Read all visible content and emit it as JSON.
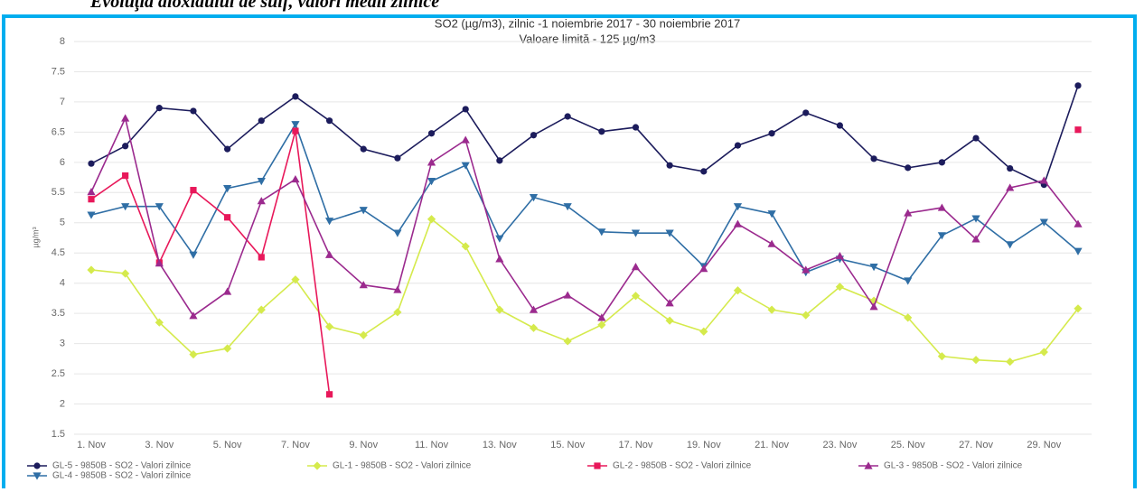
{
  "header": "Evoluţia dioxidului de sulf, valori medii zilnice",
  "chart_data": {
    "type": "line",
    "title": "SO2 (µg/m3), zilnic -1 noiembrie 2017 - 30 noiembrie 2017",
    "subtitle": "Valoare limită - 125 µg/m3",
    "y_label": "µg/m³",
    "categories": [
      "1. Nov",
      null,
      "3. Nov",
      null,
      "5. Nov",
      null,
      "7. Nov",
      null,
      "9. Nov",
      null,
      "11. Nov",
      null,
      "13. Nov",
      null,
      "15. Nov",
      null,
      "17. Nov",
      null,
      "19. Nov",
      null,
      "21. Nov",
      null,
      "23. Nov",
      null,
      "25. Nov",
      null,
      "27. Nov",
      null,
      "29. Nov",
      null
    ],
    "ylim": [
      1.5,
      8
    ],
    "yticks": [
      1.5,
      2,
      2.5,
      3,
      3.5,
      4,
      4.5,
      5,
      5.5,
      6,
      6.5,
      7,
      7.5,
      8
    ],
    "grid": true,
    "legend": "bottom",
    "series": [
      {
        "name": "GL-5 - 9850B - SO2 - Valori zilnice",
        "color": "#1c1c5c",
        "marker": "circle",
        "values": [
          5.98,
          6.27,
          6.9,
          6.85,
          6.22,
          6.69,
          7.09,
          6.69,
          6.22,
          6.07,
          6.48,
          6.88,
          6.03,
          6.45,
          6.76,
          6.51,
          6.58,
          5.95,
          5.85,
          6.28,
          6.48,
          6.82,
          6.61,
          6.06,
          5.91,
          6.0,
          6.4,
          5.9,
          5.63,
          7.27
        ]
      },
      {
        "name": "GL-4 - 9850B - SO2 - Valori zilnice",
        "color": "#2f6ea5",
        "marker": "triangle-down",
        "values": [
          5.13,
          5.27,
          5.27,
          4.47,
          5.57,
          5.69,
          6.63,
          5.03,
          5.21,
          4.83,
          5.69,
          5.95,
          4.74,
          5.42,
          5.27,
          4.85,
          4.83,
          4.83,
          4.28,
          5.27,
          5.15,
          4.18,
          4.4,
          4.27,
          4.04,
          4.79,
          5.07,
          4.64,
          5.01,
          4.53
        ]
      },
      {
        "name": "GL-1 - 9850B - SO2 - Valori zilnice",
        "color": "#d5ea4c",
        "marker": "diamond",
        "values": [
          4.22,
          4.16,
          3.35,
          2.82,
          2.92,
          3.56,
          4.06,
          3.28,
          3.14,
          3.52,
          5.06,
          4.61,
          3.56,
          3.26,
          3.04,
          3.31,
          3.79,
          3.38,
          3.2,
          3.88,
          3.56,
          3.47,
          3.94,
          3.71,
          3.43,
          2.79,
          2.73,
          2.7,
          2.86,
          3.58
        ]
      },
      {
        "name": "GL-2 - 9850B - SO2 - Valori zilnice",
        "color": "#e8185a",
        "marker": "square",
        "values": [
          5.39,
          5.78,
          4.34,
          5.54,
          5.09,
          4.43,
          6.52,
          2.16,
          null,
          null,
          null,
          null,
          null,
          null,
          null,
          null,
          null,
          null,
          null,
          null,
          null,
          null,
          null,
          null,
          null,
          null,
          null,
          null,
          null,
          6.54
        ]
      },
      {
        "name": "GL-3 - 9850B - SO2 - Valori zilnice",
        "color": "#9b2a8e",
        "marker": "triangle",
        "values": [
          5.51,
          6.73,
          4.33,
          3.46,
          3.86,
          5.36,
          5.72,
          4.47,
          3.97,
          3.89,
          6.0,
          6.37,
          4.4,
          3.56,
          3.8,
          3.43,
          4.27,
          3.67,
          4.24,
          4.98,
          4.65,
          4.22,
          4.45,
          3.61,
          5.16,
          5.25,
          4.73,
          5.58,
          5.7,
          4.98
        ]
      }
    ]
  }
}
